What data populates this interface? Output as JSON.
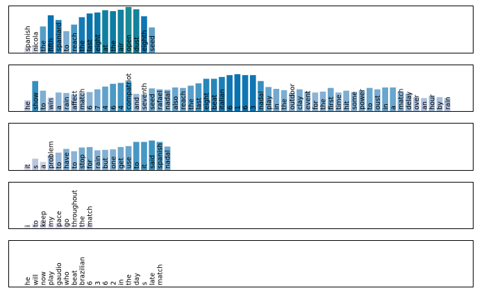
{
  "chart_data": [
    {
      "type": "bar",
      "title": "",
      "xlabel": "",
      "ylabel": "",
      "categories": [
        "spanish",
        "nicola",
        "the",
        "fifth",
        "spaniard",
        "to",
        "reach",
        "the",
        "last",
        "eight",
        "at",
        "the",
        "air",
        "open",
        "dust",
        "eighth",
        "seed"
      ],
      "values": [
        0.14,
        0.18,
        0.58,
        0.82,
        0.72,
        0.48,
        0.62,
        0.78,
        0.86,
        0.88,
        0.93,
        0.91,
        0.94,
        1.0,
        0.95,
        0.8,
        0.56
      ],
      "ylim": [
        0,
        1
      ]
    },
    {
      "type": "bar",
      "title": "",
      "xlabel": "",
      "ylabel": "",
      "categories": [
        "he",
        "show",
        "to",
        "win",
        "a",
        "rain",
        "affect",
        "match",
        "6",
        "7",
        "4",
        "6",
        "4",
        "compatriot",
        "and",
        "seventh",
        "seed",
        "rafael",
        "nadal",
        "also",
        "reach",
        "the",
        "last",
        "eight",
        "beat",
        "italian",
        "6",
        "1",
        "6",
        "3",
        "nadal",
        "play",
        "in",
        "the",
        "outdoor",
        "clay",
        "event",
        "for",
        "the",
        "first",
        "time",
        "hit",
        "some",
        "power",
        "to",
        "oust",
        "in",
        "a",
        "match",
        "delay",
        "over",
        "an",
        "hour",
        "by",
        "rain"
      ],
      "values": [
        0.25,
        0.67,
        0.46,
        0.31,
        0.42,
        0.41,
        0.38,
        0.41,
        0.43,
        0.49,
        0.55,
        0.61,
        0.63,
        0.66,
        0.39,
        0.38,
        0.51,
        0.49,
        0.48,
        0.53,
        0.52,
        0.57,
        0.62,
        0.72,
        0.72,
        0.76,
        0.8,
        0.82,
        0.8,
        0.8,
        0.67,
        0.54,
        0.5,
        0.47,
        0.41,
        0.49,
        0.44,
        0.42,
        0.44,
        0.52,
        0.42,
        0.46,
        0.43,
        0.47,
        0.52,
        0.49,
        0.53,
        0.53,
        0.44,
        0.4,
        0.32,
        0.3,
        0.35,
        0.32,
        0.3
      ],
      "ylim": [
        0,
        1
      ]
    },
    {
      "type": "bar",
      "title": "",
      "xlabel": "",
      "ylabel": "",
      "categories": [
        "it",
        "s",
        "a",
        "problem",
        "to",
        "have",
        "to",
        "stop",
        "for",
        "rain",
        "but",
        "one",
        "get",
        "use",
        "to",
        "it",
        "said",
        "spanish",
        "nadal"
      ],
      "values": [
        0.14,
        0.26,
        0.19,
        0.34,
        0.39,
        0.47,
        0.42,
        0.5,
        0.51,
        0.44,
        0.45,
        0.46,
        0.51,
        0.53,
        0.62,
        0.62,
        0.65,
        0.62,
        0.52
      ],
      "ylim": [
        0,
        1
      ]
    },
    {
      "type": "bar",
      "title": "",
      "xlabel": "",
      "ylabel": "",
      "categories": [
        "i",
        "to",
        "keep",
        "my",
        "pace",
        "go",
        "throughout",
        "the",
        "match"
      ],
      "values": [
        0.08,
        0.12,
        0.17,
        0.11,
        0.13,
        0.1,
        0.06,
        0.09,
        0.13
      ],
      "ylim": [
        0,
        1
      ]
    },
    {
      "type": "bar",
      "title": "",
      "xlabel": "",
      "ylabel": "",
      "categories": [
        "he",
        "will",
        "now",
        "play",
        "gaudio",
        "who",
        "beat",
        "brazilian",
        "6",
        "3",
        "6",
        "2",
        "in",
        "the",
        "day",
        "s",
        "late",
        "match"
      ],
      "values": [
        0.02,
        0.02,
        0.02,
        0.02,
        0.03,
        0.02,
        0.02,
        0.03,
        0.02,
        0.02,
        0.02,
        0.02,
        0.02,
        0.02,
        0.02,
        0.02,
        0.02,
        0.02
      ],
      "ylim": [
        0,
        1
      ]
    }
  ],
  "colors": {
    "scale": [
      "#f1eef6",
      "#d0d1e6",
      "#a6bddb",
      "#74a9cf",
      "#3690c0",
      "#0570b0",
      "#1b8a94"
    ],
    "frame": "#000000",
    "label": "#000000"
  }
}
